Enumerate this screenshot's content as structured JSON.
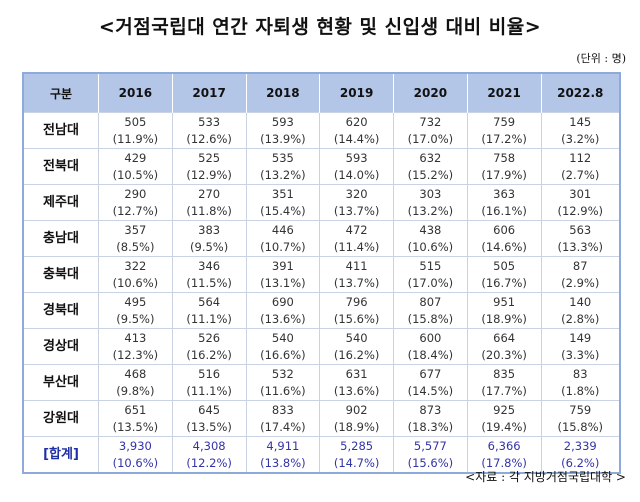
{
  "title": "<거점국립대 연간 자퇴생 현황 및 신입생 대비 비율>",
  "unit": "(단위 : 명)",
  "table": {
    "headers": [
      "구분",
      "2016",
      "2017",
      "2018",
      "2019",
      "2020",
      "2021",
      "2022.8"
    ],
    "rows": [
      {
        "name": "전남대",
        "values": [
          "505",
          "533",
          "593",
          "620",
          "732",
          "759",
          "145"
        ],
        "pcts": [
          "(11.9%)",
          "(12.6%)",
          "(13.9%)",
          "(14.4%)",
          "(17.0%)",
          "(17.2%)",
          "(3.2%)"
        ]
      },
      {
        "name": "전북대",
        "values": [
          "429",
          "525",
          "535",
          "593",
          "632",
          "758",
          "112"
        ],
        "pcts": [
          "(10.5%)",
          "(12.9%)",
          "(13.2%)",
          "(14.0%)",
          "(15.2%)",
          "(17.9%)",
          "(2.7%)"
        ]
      },
      {
        "name": "제주대",
        "values": [
          "290",
          "270",
          "351",
          "320",
          "303",
          "363",
          "301"
        ],
        "pcts": [
          "(12.7%)",
          "(11.8%)",
          "(15.4%)",
          "(13.7%)",
          "(13.2%)",
          "(16.1%)",
          "(12.9%)"
        ]
      },
      {
        "name": "충남대",
        "values": [
          "357",
          "383",
          "446",
          "472",
          "438",
          "606",
          "563"
        ],
        "pcts": [
          "(8.5%)",
          "(9.5%)",
          "(10.7%)",
          "(11.4%)",
          "(10.6%)",
          "(14.6%)",
          "(13.3%)"
        ]
      },
      {
        "name": "충북대",
        "values": [
          "322",
          "346",
          "391",
          "411",
          "515",
          "505",
          "87"
        ],
        "pcts": [
          "(10.6%)",
          "(11.5%)",
          "(13.1%)",
          "(13.7%)",
          "(17.0%)",
          "(16.7%)",
          "(2.9%)"
        ]
      },
      {
        "name": "경북대",
        "values": [
          "495",
          "564",
          "690",
          "796",
          "807",
          "951",
          "140"
        ],
        "pcts": [
          "(9.5%)",
          "(11.1%)",
          "(13.6%)",
          "(15.6%)",
          "(15.8%)",
          "(18.9%)",
          "(2.8%)"
        ]
      },
      {
        "name": "경상대",
        "values": [
          "413",
          "526",
          "540",
          "540",
          "600",
          "664",
          "149"
        ],
        "pcts": [
          "(12.3%)",
          "(16.2%)",
          "(16.6%)",
          "(16.2%)",
          "(18.4%)",
          "(20.3%)",
          "(3.3%)"
        ]
      },
      {
        "name": "부산대",
        "values": [
          "468",
          "516",
          "532",
          "631",
          "677",
          "835",
          "83"
        ],
        "pcts": [
          "(9.8%)",
          "(11.1%)",
          "(11.6%)",
          "(13.6%)",
          "(14.5%)",
          "(17.7%)",
          "(1.8%)"
        ]
      },
      {
        "name": "강원대",
        "values": [
          "651",
          "645",
          "833",
          "902",
          "873",
          "925",
          "759"
        ],
        "pcts": [
          "(13.5%)",
          "(13.5%)",
          "(17.4%)",
          "(18.9%)",
          "(18.3%)",
          "(19.4%)",
          "(15.8%)"
        ]
      }
    ],
    "total": {
      "name": "[합계]",
      "values": [
        "3,930",
        "4,308",
        "4,911",
        "5,285",
        "5,577",
        "6,366",
        "2,339"
      ],
      "pcts": [
        "(10.6%)",
        "(12.2%)",
        "(13.8%)",
        "(14.7%)",
        "(15.6%)",
        "(17.8%)",
        "(6.2%)"
      ]
    }
  },
  "source": "<자료 : 각 지방거점국립대학 >"
}
